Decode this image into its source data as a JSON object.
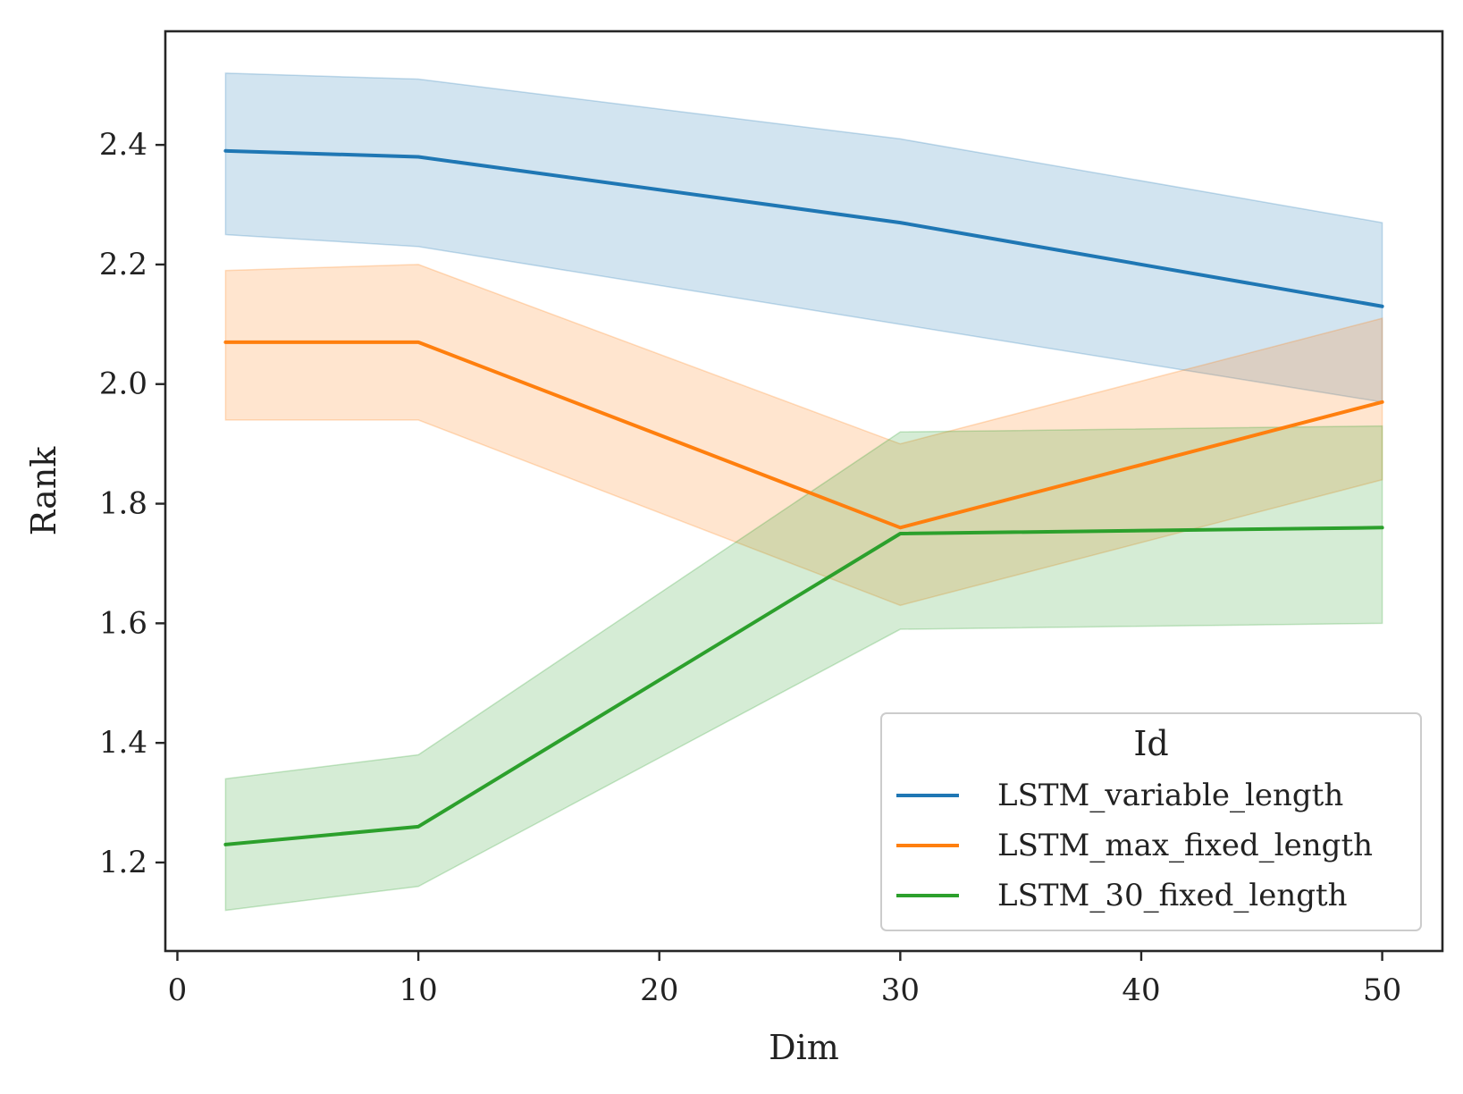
{
  "chart_data": {
    "type": "line",
    "xlabel": "Dim",
    "ylabel": "Rank",
    "xlim": [
      -0.5,
      52.5
    ],
    "ylim": [
      1.052,
      2.59
    ],
    "xticks": [
      0,
      10,
      20,
      30,
      40,
      50
    ],
    "xtick_labels": [
      "0",
      "10",
      "20",
      "30",
      "40",
      "50"
    ],
    "yticks": [
      1.2,
      1.4,
      1.6,
      1.8,
      2.0,
      2.2,
      2.4
    ],
    "ytick_labels": [
      "1.2",
      "1.4",
      "1.6",
      "1.8",
      "2.0",
      "2.2",
      "2.4"
    ],
    "grid": false,
    "legend": {
      "title": "Id",
      "position": "lower-right"
    },
    "x": [
      2,
      10,
      30,
      50
    ],
    "series": [
      {
        "name": "LSTM_variable_length",
        "color": "#1f77b4",
        "values": [
          2.39,
          2.38,
          2.27,
          2.13
        ],
        "ci_lower": [
          2.25,
          2.23,
          2.1,
          1.97
        ],
        "ci_upper": [
          2.52,
          2.51,
          2.41,
          2.27
        ]
      },
      {
        "name": "LSTM_max_fixed_length",
        "color": "#ff7f0e",
        "values": [
          2.07,
          2.07,
          1.76,
          1.97
        ],
        "ci_lower": [
          1.94,
          1.94,
          1.63,
          1.84
        ],
        "ci_upper": [
          2.19,
          2.2,
          1.9,
          2.11
        ]
      },
      {
        "name": "LSTM_30_fixed_length",
        "color": "#2ca02c",
        "values": [
          1.23,
          1.26,
          1.75,
          1.76
        ],
        "ci_lower": [
          1.12,
          1.16,
          1.59,
          1.6
        ],
        "ci_upper": [
          1.34,
          1.38,
          1.92,
          1.93
        ]
      }
    ]
  }
}
